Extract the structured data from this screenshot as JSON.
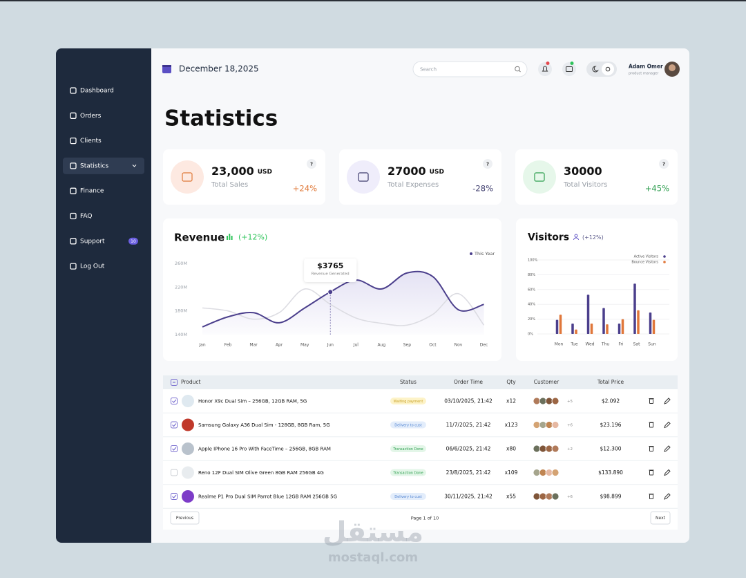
{
  "sidebar": {
    "items": [
      "Dashboard",
      "Orders",
      "Clients",
      "Statistics",
      "Finance",
      "FAQ",
      "Support",
      "Log Out"
    ],
    "active": 3,
    "support_badge": "10"
  },
  "header": {
    "date": "December 18,2025",
    "search_placeholder": "Search",
    "user_name": "Adam Omer",
    "user_role": "product manager"
  },
  "page_title": "Statistics",
  "cards": [
    {
      "value": "23,000",
      "unit": "USD",
      "label": "Total Sales",
      "help": "?",
      "change": "+24%",
      "color": "#e07a3a",
      "icon_bg": "#fde9e1"
    },
    {
      "value": "27000",
      "unit": "USD",
      "label": "Total Expenses",
      "help": "?",
      "change": "-28%",
      "color": "#3f3d6e",
      "icon_bg": "#efedfb"
    },
    {
      "value": "30000",
      "label": "Total Visitors",
      "help": "?",
      "change": "+45%",
      "color": "#2e9e4f",
      "icon_bg": "#e6f7ea"
    }
  ],
  "revenue": {
    "type": "line",
    "title": "Revenue",
    "change": "(+12%)",
    "categories": [
      "Jan",
      "Feb",
      "Mar",
      "Apr",
      "May",
      "Jun",
      "Jul",
      "Aug",
      "Sep",
      "Oct",
      "Nov",
      "Dec"
    ],
    "series": [
      {
        "name": "This Year",
        "color": "#4b3f8c",
        "values": [
          153,
          170,
          177,
          160,
          185,
          212,
          232,
          217,
          244,
          238,
          182,
          191
        ]
      },
      {
        "color": "#dcdce2",
        "values": [
          185,
          180,
          166,
          177,
          217,
          191,
          168,
          159,
          156,
          174,
          209,
          156
        ]
      }
    ],
    "ylim": [
      140,
      260
    ],
    "yticks": [
      {
        "value": 140,
        "label": "140M"
      },
      {
        "value": 180,
        "label": "180M"
      },
      {
        "value": 220,
        "label": "220M"
      },
      {
        "value": 260,
        "label": "260M"
      }
    ],
    "grid": false,
    "tooltip": {
      "value": "$3765",
      "label": "Revenue Generated"
    }
  },
  "visitors": {
    "type": "bar",
    "title": "Visitors",
    "change": "(+12%)",
    "categories": [
      "Mon",
      "Tue",
      "Wed",
      "Thu",
      "Fri",
      "Sat",
      "Sun"
    ],
    "series": [
      {
        "name": "Active Visitors",
        "color": "#4b3f8c",
        "values": [
          19,
          14,
          53,
          35,
          14,
          68,
          29
        ]
      },
      {
        "name": "Bounce Visitors",
        "color": "#e0773a",
        "values": [
          26,
          6,
          14,
          13,
          20,
          32,
          19
        ]
      }
    ],
    "ylim": [
      0,
      100
    ],
    "yticks": [
      {
        "value": 0,
        "label": "0%"
      },
      {
        "value": 20,
        "label": "20%"
      },
      {
        "value": 40,
        "label": "40%"
      },
      {
        "value": 60,
        "label": "60%"
      },
      {
        "value": 80,
        "label": "80%"
      },
      {
        "value": 100,
        "label": "100%"
      }
    ],
    "grid": true
  },
  "table": {
    "columns": [
      "Product",
      "Status",
      "Order Time",
      "Qty",
      "Customer",
      "Total Price"
    ],
    "rows": [
      {
        "checked": true,
        "product": "Honor X9c Dual Sim – 256GB, 12GB RAM, 5G",
        "status": "Waiting payment",
        "status_color": "#c9a227",
        "status_bg": "#fdf3c8",
        "order_time": "03/10/2025, 21:42",
        "qty": "x12",
        "customers_more": "+5",
        "total": "$2.092"
      },
      {
        "checked": true,
        "product": "Samsung Galaxy A36 Dual Sim - 128GB, 8GB Ram, 5G",
        "status": "Delivery to cust",
        "status_color": "#4a7fd0",
        "status_bg": "#e3edfb",
        "order_time": "11/7/2025, 21:42",
        "qty": "x123",
        "customers_more": "+6",
        "total": "$23.196"
      },
      {
        "checked": true,
        "product": "Apple IPhone 16 Pro With FaceTime – 256GB, 8GB RAM",
        "status": "Transaction Done",
        "status_color": "#2e9e4f",
        "status_bg": "#e3f6e8",
        "order_time": "06/6/2025, 21:42",
        "qty": "x80",
        "customers_more": "+2",
        "total": "$12.300"
      },
      {
        "checked": false,
        "product": "Reno 12F Dual SIM Olive Green 8GB RAM 256GB 4G",
        "status": "Transaction Done",
        "status_color": "#2e9e4f",
        "status_bg": "#e3f6e8",
        "order_time": "23/8/2025, 21:42",
        "qty": "x109",
        "total": "$133.890"
      },
      {
        "checked": true,
        "product": "Realme P1 Pro Dual SIM Parrot Blue 12GB RAM 256GB 5G",
        "status": "Delivery to cust",
        "status_color": "#4a7fd0",
        "status_bg": "#e3edfb",
        "order_time": "30/11/2025, 21:42",
        "qty": "x55",
        "customers_more": "+6",
        "total": "$98.899"
      }
    ],
    "previous": "Previous",
    "page": "Page 1 of 10",
    "next": "Next"
  },
  "watermark": {
    "arabic": "مستقل",
    "latin": "mostaql.com"
  }
}
